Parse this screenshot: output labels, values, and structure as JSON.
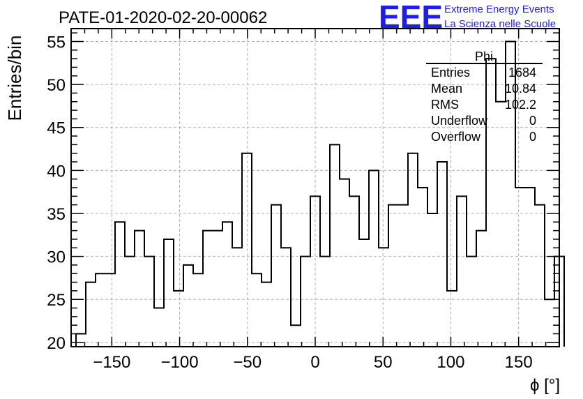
{
  "chart_data": {
    "type": "histogram",
    "title": "PATE-01-2020-02-20-00062",
    "xlabel": "ϕ [°]",
    "ylabel": "Entries/bin",
    "xlim": [
      -180,
      180
    ],
    "ylim": [
      19.5,
      56.5
    ],
    "bin_width": 7.2,
    "first_bin_low": -176.4,
    "grid": true,
    "xticks": [
      -150,
      -100,
      -50,
      0,
      50,
      100,
      150
    ],
    "xtick_labels": [
      "−150",
      "−100",
      "−50",
      "0",
      "50",
      "100",
      "150"
    ],
    "yticks": [
      20,
      25,
      30,
      35,
      40,
      45,
      50,
      55
    ],
    "ytick_labels": [
      "20",
      "25",
      "30",
      "35",
      "40",
      "45",
      "50",
      "55"
    ],
    "values": [
      21,
      27,
      28,
      28,
      34,
      30,
      33,
      30,
      24,
      32,
      26,
      29,
      28,
      33,
      33,
      34,
      31,
      42,
      28,
      27,
      36,
      31,
      22,
      30,
      37,
      30,
      43,
      39,
      37,
      32,
      40,
      31,
      36,
      36,
      42,
      38,
      35,
      41,
      26,
      37,
      30,
      33,
      53,
      48,
      55,
      38,
      38,
      36,
      25,
      30
    ],
    "stats": {
      "name": "Phi",
      "rows": [
        {
          "label": "Entries",
          "value": "1684"
        },
        {
          "label": "Mean",
          "value": "10.84"
        },
        {
          "label": "RMS",
          "value": "102.2"
        },
        {
          "label": "Underflow",
          "value": "0"
        },
        {
          "label": "Overflow",
          "value": "0"
        }
      ]
    }
  },
  "logo": {
    "mark": "EEE",
    "line1": "Extreme Energy Events",
    "line2": "La Scienza nelle Scuole",
    "color": "#1f1fe0"
  },
  "colors": {
    "line": "#000000",
    "grid": "#b0b0b0",
    "logo": "#1f1fe0"
  }
}
